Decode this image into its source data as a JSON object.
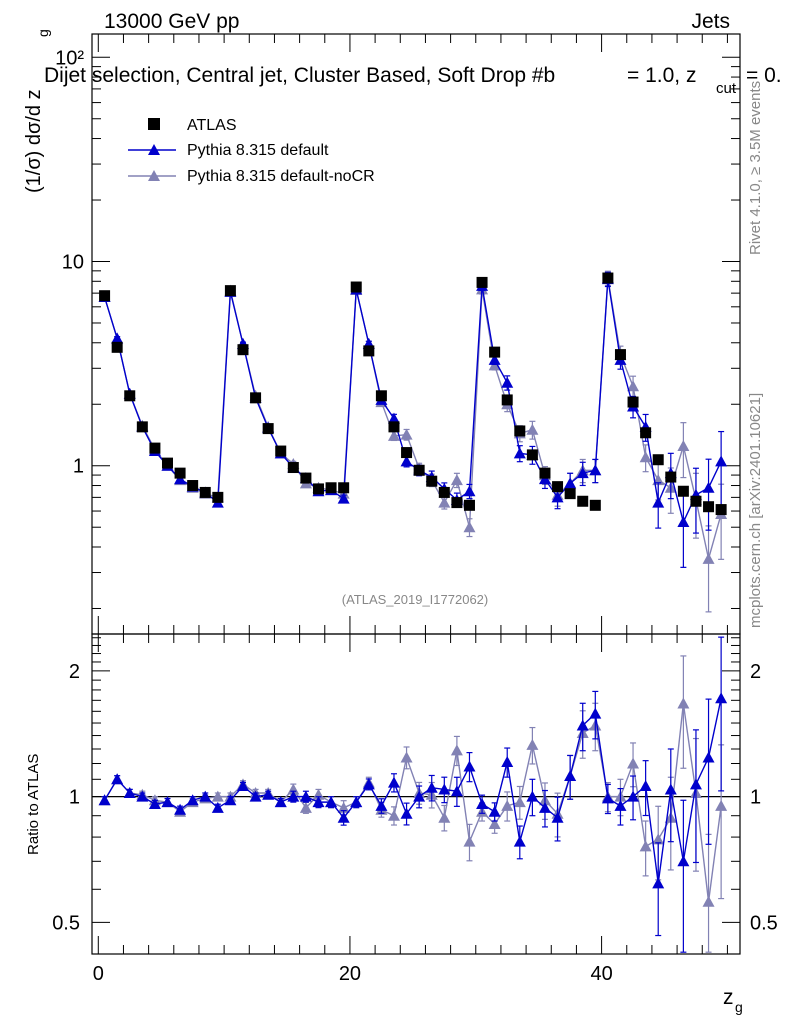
{
  "header": {
    "energy_label": "13000 GeV pp",
    "process_label": "Jets",
    "selection_title": "Dijet selection, Central jet, Cluster Based, Soft Drop #b",
    "title_beta": "= 1.0, z",
    "title_cut": "cut",
    "title_tail": "= 0.",
    "side_rivet": "Rivet 4.1.0, ≥ 3.5M events",
    "side_mcplots": "mcplots.cern.ch [arXiv:2401.10621]",
    "analysis_id": "(ATLAS_2019_I1772062)"
  },
  "chart_data": {
    "type": "scatter",
    "title": "Dijet selection, Central jet, Cluster Based, Soft Drop #b = 1.0, z_cut = 0.",
    "xlabel": "z",
    "xlabel_sub": "g",
    "ylabel": "(1/σ) dσ/d z",
    "ylabel_sub": "g",
    "ratio_ylabel": "Ratio to ATLAS",
    "x_range": [
      -0.5,
      51
    ],
    "y_range_log": [
      0.15,
      130
    ],
    "ratio_range_log": [
      0.42,
      2.45
    ],
    "x_ticks": [
      "0",
      "20",
      "40"
    ],
    "y_ticks": [
      "1",
      "10",
      "10²"
    ],
    "ratio_ticks": [
      "0.5",
      "1",
      "2"
    ],
    "legend": {
      "placement": "top-left",
      "entries": [
        "ATLAS",
        "Pythia 8.315 default",
        "Pythia 8.315 default-noCR"
      ]
    },
    "x": [
      0.5,
      1.5,
      2.5,
      3.5,
      4.5,
      5.5,
      6.5,
      7.5,
      8.5,
      9.5,
      10.5,
      11.5,
      12.5,
      13.5,
      14.5,
      15.5,
      16.5,
      17.5,
      18.5,
      19.5,
      20.5,
      21.5,
      22.5,
      23.5,
      24.5,
      25.5,
      26.5,
      27.5,
      28.5,
      29.5,
      30.5,
      31.5,
      32.5,
      33.5,
      34.5,
      35.5,
      36.5,
      37.5,
      38.5,
      39.5,
      40.5,
      41.5,
      42.5,
      43.5,
      44.5,
      45.5,
      46.5,
      47.5,
      48.5,
      49.5
    ],
    "atlas": [
      6.8,
      3.8,
      2.2,
      1.55,
      1.22,
      1.03,
      0.92,
      0.8,
      0.74,
      0.7,
      7.2,
      3.7,
      2.15,
      1.52,
      1.18,
      0.98,
      0.87,
      0.77,
      0.78,
      0.78,
      7.5,
      3.65,
      2.2,
      1.55,
      1.16,
      0.95,
      0.84,
      0.74,
      0.66,
      0.64,
      7.9,
      3.6,
      2.1,
      1.48,
      1.13,
      0.92,
      0.79,
      0.73,
      0.67,
      0.64,
      8.3,
      3.5,
      2.05,
      1.45,
      1.07,
      0.88,
      0.75,
      0.67,
      0.63,
      0.61
    ],
    "series": [
      {
        "name": "Pythia 8.315 default",
        "color": "#0000cc",
        "values": [
          6.7,
          4.2,
          2.25,
          1.55,
          1.18,
          1.0,
          0.86,
          0.79,
          0.74,
          0.66,
          7.1,
          3.95,
          2.15,
          1.53,
          1.15,
          0.98,
          0.87,
          0.75,
          0.76,
          0.69,
          7.3,
          3.95,
          2.1,
          1.7,
          1.05,
          0.95,
          0.88,
          0.77,
          0.68,
          0.75,
          7.6,
          3.3,
          2.55,
          1.15,
          1.13,
          0.86,
          0.7,
          0.82,
          0.92,
          0.95,
          8.2,
          3.3,
          1.95,
          1.55,
          0.66,
          0.92,
          0.53,
          0.72,
          0.78,
          1.05
        ],
        "errors": [
          0.02,
          0.02,
          0.02,
          0.02,
          0.02,
          0.02,
          0.02,
          0.02,
          0.02,
          0.02,
          0.02,
          0.02,
          0.02,
          0.02,
          0.02,
          0.03,
          0.03,
          0.03,
          0.03,
          0.04,
          0.03,
          0.03,
          0.04,
          0.05,
          0.06,
          0.06,
          0.07,
          0.07,
          0.08,
          0.08,
          0.05,
          0.05,
          0.08,
          0.09,
          0.1,
          0.1,
          0.12,
          0.12,
          0.13,
          0.13,
          0.08,
          0.1,
          0.12,
          0.15,
          0.25,
          0.25,
          0.4,
          0.35,
          0.38,
          0.4
        ],
        "ratio": [
          0.98,
          1.1,
          1.02,
          1.0,
          0.96,
          0.97,
          0.93,
          0.98,
          1.0,
          0.94,
          0.98,
          1.06,
          1.0,
          1.01,
          0.97,
          1.0,
          1.0,
          0.97,
          0.97,
          0.89,
          0.97,
          1.07,
          0.95,
          1.08,
          0.91,
          1.0,
          1.05,
          1.04,
          1.03,
          1.18,
          0.96,
          0.92,
          1.21,
          0.78,
          1.0,
          0.94,
          0.89,
          1.12,
          1.48,
          1.58,
          0.99,
          0.95,
          1.0,
          1.06,
          0.62,
          1.04,
          0.7,
          1.07,
          1.24,
          1.72
        ]
      },
      {
        "name": "Pythia 8.315 default-noCR",
        "color": "#8282b4",
        "values": [
          6.7,
          4.2,
          2.25,
          1.57,
          1.2,
          1.0,
          0.85,
          0.78,
          0.73,
          0.7,
          7.2,
          3.95,
          2.2,
          1.55,
          1.15,
          1.02,
          0.82,
          0.78,
          0.76,
          0.73,
          7.25,
          3.95,
          2.05,
          1.4,
          1.42,
          0.97,
          0.85,
          0.66,
          0.85,
          0.5,
          7.3,
          3.1,
          2.0,
          1.44,
          1.5,
          0.9,
          0.72,
          0.82,
          0.95,
          0.95,
          8.3,
          3.5,
          2.45,
          1.1,
          0.85,
          0.78,
          1.25,
          0.68,
          0.35,
          0.58
        ],
        "errors": [
          0.02,
          0.02,
          0.02,
          0.02,
          0.02,
          0.02,
          0.02,
          0.02,
          0.02,
          0.02,
          0.02,
          0.02,
          0.02,
          0.02,
          0.02,
          0.03,
          0.03,
          0.03,
          0.03,
          0.04,
          0.03,
          0.03,
          0.04,
          0.05,
          0.06,
          0.06,
          0.07,
          0.07,
          0.08,
          0.1,
          0.05,
          0.05,
          0.08,
          0.09,
          0.1,
          0.1,
          0.12,
          0.12,
          0.13,
          0.13,
          0.08,
          0.1,
          0.12,
          0.15,
          0.2,
          0.25,
          0.3,
          0.35,
          0.45,
          0.4
        ],
        "ratio": [
          0.98,
          1.1,
          1.02,
          1.01,
          0.98,
          0.97,
          0.92,
          0.97,
          0.99,
          1.0,
          1.0,
          1.07,
          1.02,
          1.02,
          0.97,
          1.04,
          0.94,
          1.01,
          0.97,
          0.94,
          0.97,
          1.08,
          0.93,
          0.9,
          1.24,
          1.02,
          1.01,
          0.89,
          1.29,
          0.78,
          0.92,
          0.86,
          0.95,
          0.97,
          1.33,
          0.98,
          0.91,
          1.12,
          1.42,
          1.48,
          1.0,
          1.0,
          1.2,
          0.76,
          0.79,
          0.89,
          1.67,
          1.02,
          0.56,
          0.95
        ]
      }
    ]
  }
}
